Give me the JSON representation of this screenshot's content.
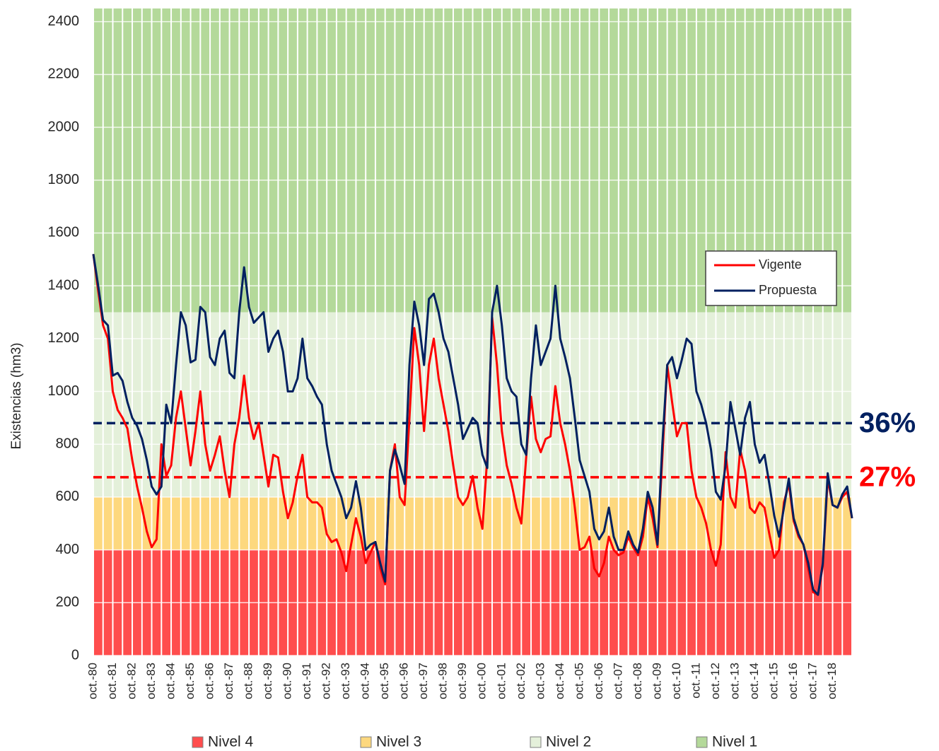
{
  "chart_data": {
    "type": "line",
    "y_label": "Existencias (hm3)",
    "ylim": [
      0,
      2450
    ],
    "yticks": [
      0,
      200,
      400,
      600,
      800,
      1000,
      1200,
      1400,
      1600,
      1800,
      2000,
      2200,
      2400
    ],
    "categories": [
      "oct.-80",
      null,
      null,
      null,
      "oct.-81",
      null,
      null,
      null,
      "oct.-82",
      null,
      null,
      null,
      "oct.-83",
      null,
      null,
      null,
      "oct.-84",
      null,
      null,
      null,
      "oct.-85",
      null,
      null,
      null,
      "oct.-86",
      null,
      null,
      null,
      "oct.-87",
      null,
      null,
      null,
      "oct.-88",
      null,
      null,
      null,
      "oct.-89",
      null,
      null,
      null,
      "oct.-90",
      null,
      null,
      null,
      "oct.-91",
      null,
      null,
      null,
      "oct.-92",
      null,
      null,
      null,
      "oct.-93",
      null,
      null,
      null,
      "oct.-94",
      null,
      null,
      null,
      "oct.-95",
      null,
      null,
      null,
      "oct.-96",
      null,
      null,
      null,
      "oct.-97",
      null,
      null,
      null,
      "oct.-98",
      null,
      null,
      null,
      "oct.-99",
      null,
      null,
      null,
      "oct.-00",
      null,
      null,
      null,
      "oct.-01",
      null,
      null,
      null,
      "oct.-02",
      null,
      null,
      null,
      "oct.-03",
      null,
      null,
      null,
      "oct.-04",
      null,
      null,
      null,
      "oct.-05",
      null,
      null,
      null,
      "oct.-06",
      null,
      null,
      null,
      "oct.-07",
      null,
      null,
      null,
      "oct.-08",
      null,
      null,
      null,
      "oct.-09",
      null,
      null,
      null,
      "oct.-10",
      null,
      null,
      null,
      "oct.-11",
      null,
      null,
      null,
      "oct.-12",
      null,
      null,
      null,
      "oct.-13",
      null,
      null,
      null,
      "oct.-14",
      null,
      null,
      null,
      "oct.-15",
      null,
      null,
      null,
      "oct.-16",
      null,
      null,
      null,
      "oct.-17",
      null,
      null,
      null,
      "oct.-18",
      null,
      null,
      null,
      null
    ],
    "bands": [
      {
        "name": "Nivel 4",
        "color": "#ff4d4d",
        "from": 0,
        "to": 400
      },
      {
        "name": "Nivel 3",
        "color": "#fdd87e",
        "from": 400,
        "to": 600
      },
      {
        "name": "Nivel 2",
        "color": "#e4f0da",
        "from": 600,
        "to": 1300
      },
      {
        "name": "Nivel 1",
        "color": "#b4d99a",
        "from": 1300,
        "to": 2450
      }
    ],
    "series": [
      {
        "name": "Vigente",
        "color": "#ff0000",
        "values": [
          1520,
          1380,
          1250,
          1200,
          1000,
          930,
          900,
          860,
          740,
          640,
          560,
          470,
          410,
          440,
          800,
          680,
          720,
          900,
          1000,
          860,
          720,
          850,
          1000,
          800,
          700,
          760,
          830,
          700,
          600,
          800,
          900,
          1060,
          900,
          820,
          880,
          760,
          640,
          760,
          750,
          620,
          520,
          580,
          680,
          760,
          600,
          580,
          580,
          560,
          460,
          430,
          440,
          390,
          320,
          420,
          520,
          450,
          350,
          390,
          430,
          330,
          270,
          700,
          800,
          600,
          570,
          900,
          1240,
          1100,
          850,
          1100,
          1200,
          1050,
          950,
          850,
          720,
          600,
          570,
          600,
          680,
          560,
          480,
          750,
          1280,
          1100,
          850,
          720,
          650,
          560,
          500,
          750,
          980,
          820,
          770,
          820,
          830,
          1020,
          880,
          800,
          700,
          560,
          400,
          410,
          450,
          330,
          300,
          350,
          450,
          400,
          380,
          390,
          450,
          410,
          380,
          450,
          600,
          520,
          410,
          750,
          1100,
          960,
          830,
          880,
          880,
          700,
          600,
          560,
          500,
          400,
          340,
          420,
          770,
          600,
          560,
          780,
          700,
          560,
          540,
          580,
          560,
          460,
          370,
          400,
          580,
          650,
          510,
          450,
          420,
          330,
          240,
          230,
          340,
          670,
          570,
          560,
          600,
          620,
          520
        ]
      },
      {
        "name": "Propuesta",
        "color": "#002060",
        "values": [
          1520,
          1400,
          1270,
          1250,
          1060,
          1070,
          1040,
          960,
          900,
          870,
          820,
          740,
          640,
          610,
          640,
          950,
          880,
          1100,
          1300,
          1250,
          1110,
          1120,
          1320,
          1300,
          1130,
          1100,
          1200,
          1230,
          1070,
          1050,
          1300,
          1470,
          1320,
          1260,
          1280,
          1300,
          1150,
          1200,
          1230,
          1150,
          1000,
          1000,
          1050,
          1200,
          1050,
          1020,
          980,
          950,
          800,
          700,
          650,
          600,
          520,
          560,
          660,
          560,
          400,
          420,
          430,
          350,
          280,
          700,
          780,
          720,
          650,
          1100,
          1340,
          1250,
          1100,
          1350,
          1370,
          1300,
          1200,
          1150,
          1050,
          950,
          820,
          860,
          900,
          880,
          760,
          710,
          1300,
          1400,
          1250,
          1050,
          1000,
          980,
          800,
          760,
          1050,
          1250,
          1100,
          1150,
          1200,
          1400,
          1200,
          1130,
          1050,
          900,
          740,
          680,
          620,
          480,
          440,
          470,
          560,
          450,
          400,
          400,
          470,
          420,
          390,
          480,
          620,
          560,
          420,
          800,
          1100,
          1130,
          1050,
          1120,
          1200,
          1180,
          1000,
          950,
          880,
          780,
          620,
          590,
          720,
          960,
          860,
          760,
          900,
          960,
          800,
          730,
          760,
          650,
          530,
          450,
          560,
          670,
          520,
          460,
          420,
          350,
          250,
          230,
          350,
          690,
          570,
          560,
          610,
          640,
          520
        ]
      }
    ],
    "reference_lines": [
      {
        "y": 880,
        "color": "#002060",
        "annotation": "36%"
      },
      {
        "y": 675,
        "color": "#ff0000",
        "annotation": "27%"
      }
    ]
  }
}
